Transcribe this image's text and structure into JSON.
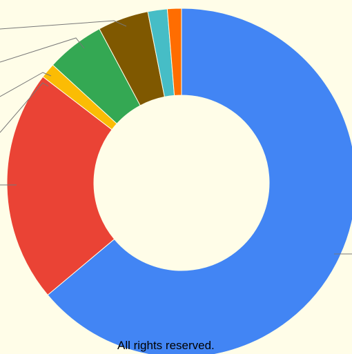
{
  "chart_data": {
    "type": "donut",
    "categories": [
      null,
      null,
      null,
      null,
      null,
      null,
      null
    ],
    "values": [
      63.9,
      21.5,
      1.4,
      5.4,
      4.7,
      1.8,
      1.3
    ],
    "colors": [
      "#4285f4",
      "#ea4335",
      "#fbbc04",
      "#34a853",
      "#7f5800",
      "#46bdc6",
      "#ff6d01"
    ]
  },
  "footer": "All rights reserved."
}
